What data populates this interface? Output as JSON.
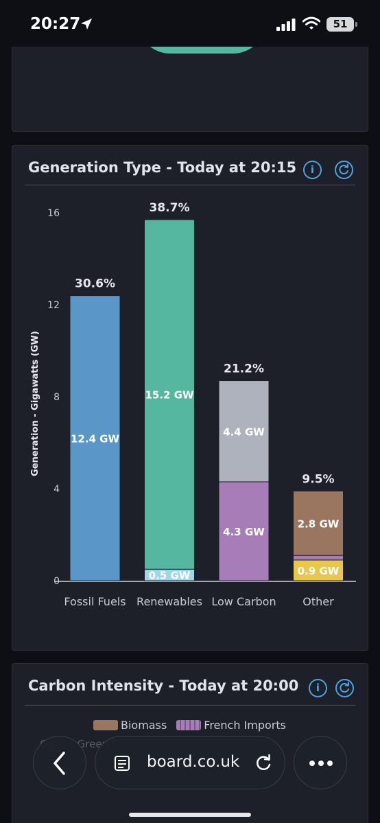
{
  "status_bar": {
    "time": "20:27",
    "battery": "51"
  },
  "generation_card": {
    "title": "Generation Type - Today at 20:15",
    "info_label": "i"
  },
  "chart_data": {
    "type": "bar",
    "stacked": true,
    "ylabel": "Generation - Gigawatts (GW)",
    "ylim": [
      0,
      16
    ],
    "yticks": [
      0,
      4,
      8,
      12,
      16
    ],
    "categories": [
      "Fossil Fuels",
      "Renewables",
      "Low Carbon",
      "Other"
    ],
    "totals": [
      "30.6%",
      "38.7%",
      "21.2%",
      "9.5%"
    ],
    "stacks": [
      [
        {
          "value": 12.4,
          "label": "12.4 GW",
          "color": "#5a97c8"
        }
      ],
      [
        {
          "value": 0.5,
          "label": "0.5 GW",
          "color": "#9fd7ea"
        },
        {
          "value": 15.2,
          "label": "15.2 GW",
          "color": "#56b7a0"
        }
      ],
      [
        {
          "value": 4.3,
          "label": "4.3 GW",
          "color": "#a77db8"
        },
        {
          "value": 4.4,
          "label": "4.4 GW",
          "color": "#aeb2bd"
        }
      ],
      [
        {
          "value": 0.9,
          "label": "0.9 GW",
          "color": "#e8c74a"
        },
        {
          "value": 0.2,
          "label": "",
          "color": "#a77db8"
        },
        {
          "value": 2.8,
          "label": "2.8 GW",
          "color": "#9a7560"
        }
      ]
    ],
    "grid": false
  },
  "carbon_card": {
    "title": "Carbon Intensity - Today at 20:00",
    "info_label": "i",
    "legend": [
      {
        "name": "Biomass",
        "color": "#9a7560"
      },
      {
        "name": "French Imports",
        "color": "#a77db8"
      }
    ],
    "faded_legend": "Gas (                )          Green C"
  },
  "browser": {
    "url": "board.co.uk"
  }
}
